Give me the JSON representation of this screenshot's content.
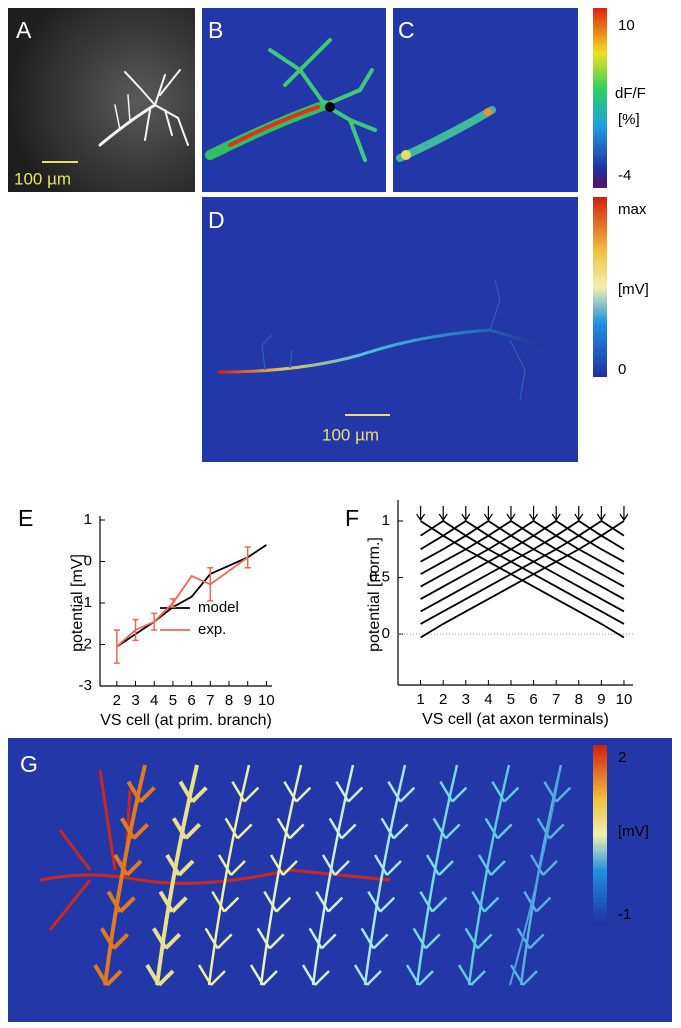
{
  "panels": {
    "a": {
      "label": "A",
      "scale_bar": "100 µm"
    },
    "b": {
      "label": "B"
    },
    "c": {
      "label": "C"
    },
    "d": {
      "label": "D",
      "scale_bar": "100 µm"
    },
    "g": {
      "label": "G"
    }
  },
  "colorbars": [
    {
      "max": "10",
      "title": "dF/F",
      "unit": "[%]",
      "min": "-4"
    },
    {
      "max": "max",
      "unit": "[mV]",
      "min": "0"
    },
    {
      "max": "2",
      "unit": "[mV]",
      "min": "-1"
    }
  ],
  "chart_data": [
    {
      "type": "line",
      "label": "E",
      "xlabel": "VS cell (at prim. branch)",
      "ylabel": "potential [mV]",
      "xlim": [
        1.1,
        10.3
      ],
      "ylim": [
        -3,
        1
      ],
      "xticks": [
        2,
        3,
        4,
        5,
        6,
        7,
        8,
        9,
        10
      ],
      "yticks": [
        -3,
        -2,
        -1,
        0,
        1
      ],
      "legend": "lower right",
      "series": [
        {
          "name": "model",
          "color": "#000000",
          "x": [
            2,
            3,
            4,
            5,
            6,
            7,
            8,
            9,
            10
          ],
          "values": [
            -2.05,
            -1.75,
            -1.45,
            -1.1,
            -0.85,
            -0.3,
            -0.1,
            0.1,
            0.4
          ]
        },
        {
          "name": "exp.",
          "color": "#f0645a",
          "x": [
            2,
            3,
            4,
            5,
            6,
            7,
            9
          ],
          "values": [
            -2.05,
            -1.65,
            -1.45,
            -1.0,
            -0.35,
            -0.55,
            0.1
          ],
          "errors": [
            0.4,
            0.25,
            0.2,
            0.1,
            null,
            0.4,
            0.25
          ]
        }
      ]
    },
    {
      "type": "line",
      "label": "F",
      "xlabel": "VS cell (at axon terminals)",
      "ylabel": "potential [norm.]",
      "xlim": [
        0,
        10.4
      ],
      "ylim": [
        -0.45,
        1.15
      ],
      "xticks": [
        1,
        2,
        3,
        4,
        5,
        6,
        7,
        8,
        9,
        10
      ],
      "yticks": [
        0,
        0.5,
        1
      ],
      "zero_line": true,
      "x": [
        1,
        2,
        3,
        4,
        5,
        6,
        7,
        8,
        9,
        10
      ],
      "series": [
        {
          "color": "#000000",
          "values": [
            1,
            0.87,
            0.75,
            0.64,
            0.53,
            0.42,
            0.31,
            0.2,
            0.09,
            -0.03
          ]
        },
        {
          "color": "#000000",
          "values": [
            0.87,
            1,
            0.87,
            0.75,
            0.64,
            0.53,
            0.42,
            0.31,
            0.2,
            0.09
          ]
        },
        {
          "color": "#000000",
          "values": [
            0.75,
            0.87,
            1,
            0.87,
            0.75,
            0.64,
            0.53,
            0.42,
            0.31,
            0.2
          ]
        },
        {
          "color": "#000000",
          "values": [
            0.64,
            0.75,
            0.87,
            1,
            0.87,
            0.75,
            0.64,
            0.53,
            0.42,
            0.31
          ]
        },
        {
          "color": "#000000",
          "values": [
            0.53,
            0.64,
            0.75,
            0.87,
            1,
            0.87,
            0.75,
            0.64,
            0.53,
            0.42
          ]
        },
        {
          "color": "#000000",
          "values": [
            0.42,
            0.53,
            0.64,
            0.75,
            0.87,
            1,
            0.87,
            0.75,
            0.64,
            0.53
          ]
        },
        {
          "color": "#000000",
          "values": [
            0.31,
            0.42,
            0.53,
            0.64,
            0.75,
            0.87,
            1,
            0.87,
            0.75,
            0.64
          ]
        },
        {
          "color": "#000000",
          "values": [
            0.2,
            0.31,
            0.42,
            0.53,
            0.64,
            0.75,
            0.87,
            1,
            0.87,
            0.75
          ]
        },
        {
          "color": "#000000",
          "values": [
            0.09,
            0.2,
            0.31,
            0.42,
            0.53,
            0.64,
            0.75,
            0.87,
            1,
            0.87
          ]
        },
        {
          "color": "#000000",
          "values": [
            -0.03,
            0.09,
            0.2,
            0.31,
            0.42,
            0.53,
            0.64,
            0.75,
            0.87,
            1
          ]
        }
      ]
    }
  ]
}
